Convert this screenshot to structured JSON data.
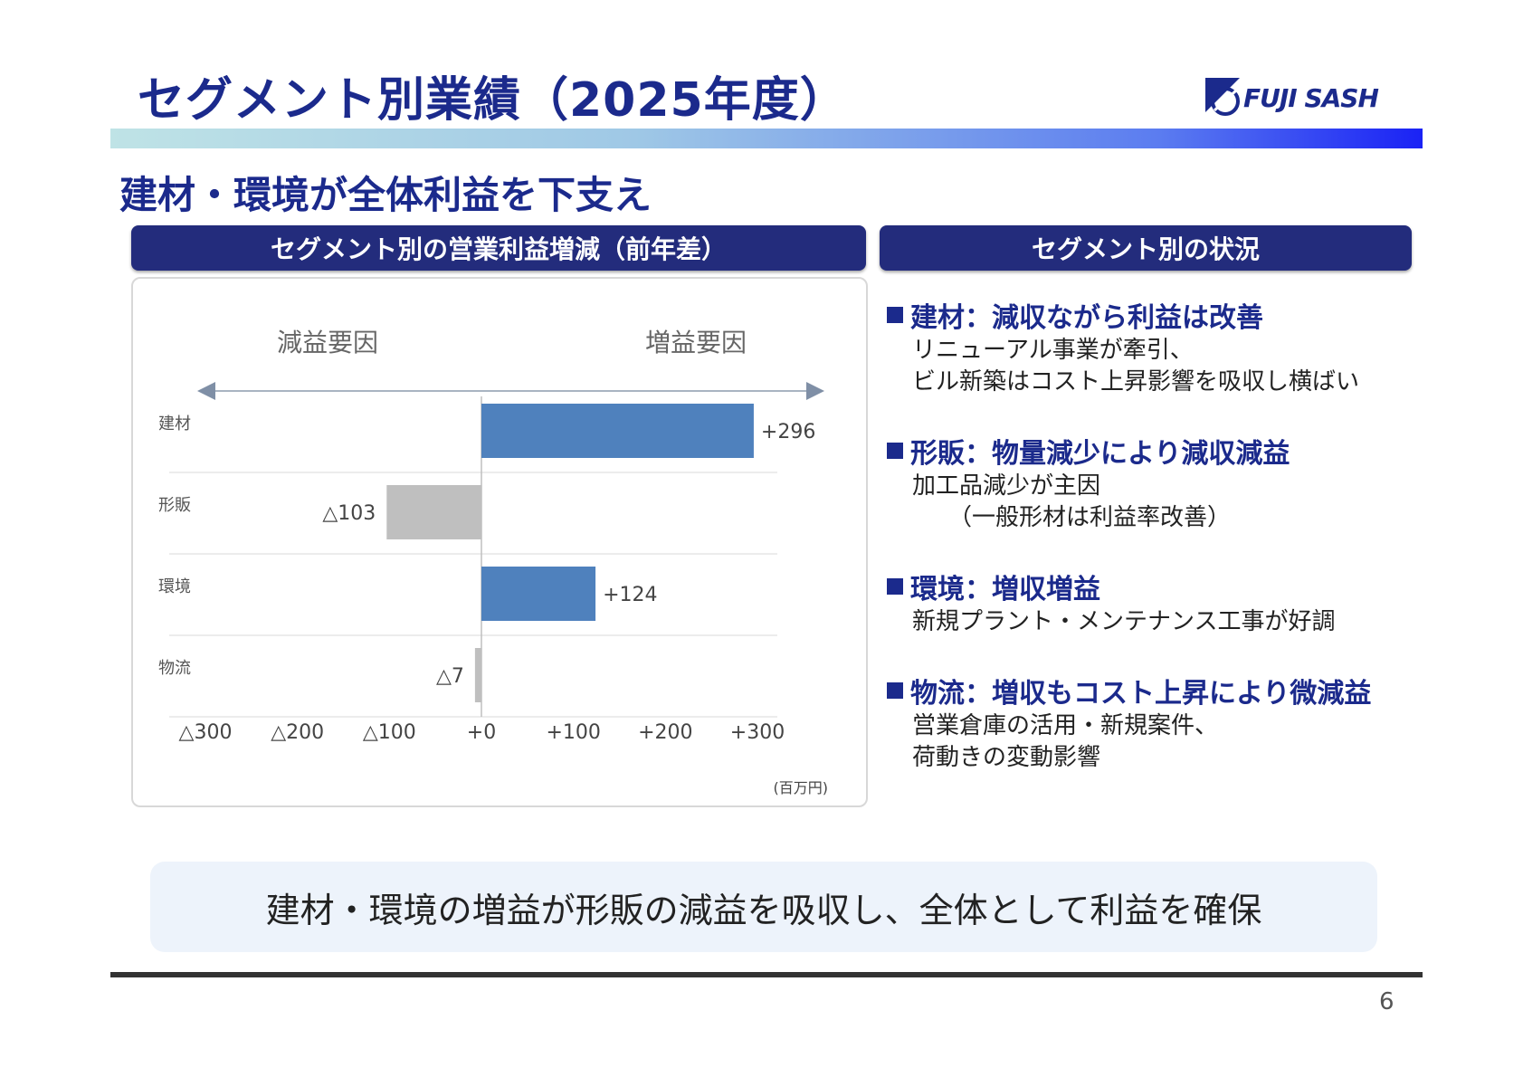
{
  "title": "セグメント別業績（2025年度）",
  "logo": {
    "text": "FUJI SASH"
  },
  "subtitle": "建材・環境が全体利益を下支え",
  "left_panel": {
    "header": "セグメント別の営業利益増減（前年差）"
  },
  "right_panel": {
    "header": "セグメント別の状況"
  },
  "chart_data": {
    "type": "bar",
    "orientation": "horizontal",
    "categories": [
      "建材",
      "形販",
      "環境",
      "物流"
    ],
    "values": [
      296,
      -103,
      124,
      -7
    ],
    "data_labels": [
      "+296",
      "△103",
      "+124",
      "△7"
    ],
    "xlim": [
      -300,
      300
    ],
    "x_ticks": [
      "△300",
      "△200",
      "△100",
      "+0",
      "+100",
      "+200",
      "+300"
    ],
    "unit": "(百万円)",
    "left_label": "減益要因",
    "right_label": "増益要因",
    "colors": {
      "positive": "#4f81bd",
      "negative": "#bfbfbf"
    },
    "grid": true
  },
  "segments": [
    {
      "title": "建材：減収ながら利益は改善",
      "lines": [
        "リニューアル事業が牽引、",
        "ビル新築はコスト上昇影響を吸収し横ばい"
      ]
    },
    {
      "title": "形販：物量減少により減収減益",
      "lines": [
        "加工品減少が主因",
        "（一般形材は利益率改善）"
      ]
    },
    {
      "title": "環境：増収増益",
      "lines": [
        "新規プラント・メンテナンス工事が好調"
      ]
    },
    {
      "title": "物流：増収もコスト上昇により微減益",
      "lines": [
        "営業倉庫の活用・新規案件、",
        "荷動きの変動影響"
      ]
    }
  ],
  "conclusion": "建材・環境の増益が形販の減益を吸収し、全体として利益を確保",
  "page_number": "6"
}
